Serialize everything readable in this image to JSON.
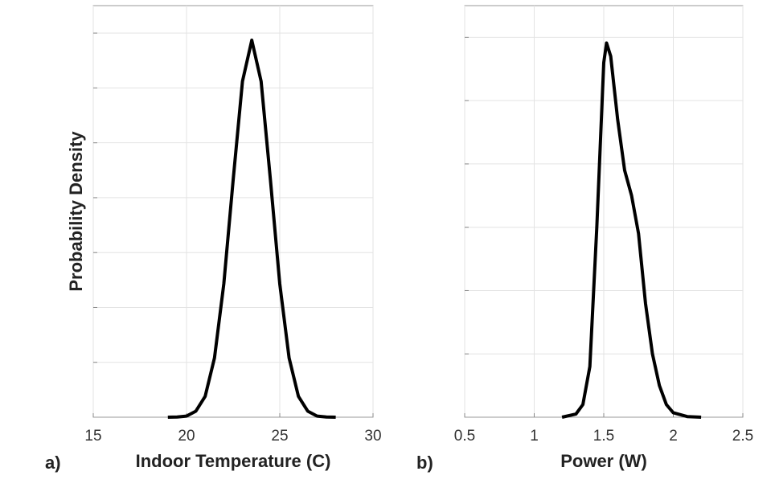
{
  "chart_data": [
    {
      "type": "line",
      "panel_label": "a)",
      "xlabel": "Indoor Temperature (C)",
      "ylabel": "Probability Density",
      "x": [
        19,
        19.5,
        20,
        20.5,
        21,
        21.5,
        22,
        22.5,
        23,
        23.5,
        24,
        24.5,
        25,
        25.5,
        26,
        26.5,
        27,
        27.5,
        28
      ],
      "series": [
        {
          "color": "#000000",
          "values": [
            0,
            0.004,
            0.02,
            0.11,
            0.38,
            1.08,
            2.43,
            4.32,
            6.12,
            6.87,
            6.12,
            4.32,
            2.43,
            1.08,
            0.38,
            0.11,
            0.02,
            0.004,
            0
          ]
        }
      ],
      "xlim": [
        15,
        30
      ],
      "xticks": [
        15,
        20,
        25,
        30
      ],
      "ylim": [
        0,
        7.5
      ],
      "ygrid": [
        1,
        2,
        3,
        4,
        5,
        6,
        7
      ],
      "grid": true
    },
    {
      "type": "line",
      "panel_label": "b)",
      "xlabel": "Power (W)",
      "x": [
        1.2,
        1.3,
        1.35,
        1.4,
        1.45,
        1.5,
        1.52,
        1.55,
        1.6,
        1.65,
        1.7,
        1.75,
        1.8,
        1.85,
        1.9,
        1.95,
        2.0,
        2.1,
        2.2
      ],
      "series": [
        {
          "color": "#000000",
          "values": [
            0,
            0.05,
            0.2,
            0.8,
            3.0,
            5.6,
            5.91,
            5.7,
            4.7,
            3.9,
            3.5,
            2.9,
            1.8,
            1.0,
            0.5,
            0.2,
            0.07,
            0.01,
            0
          ]
        }
      ],
      "xlim": [
        0.5,
        2.5
      ],
      "xticks": [
        0.5,
        1,
        1.5,
        2,
        2.5
      ],
      "ylim": [
        0,
        6.5
      ],
      "ygrid": [
        1,
        2,
        3,
        4,
        5,
        6
      ],
      "grid": true
    }
  ]
}
